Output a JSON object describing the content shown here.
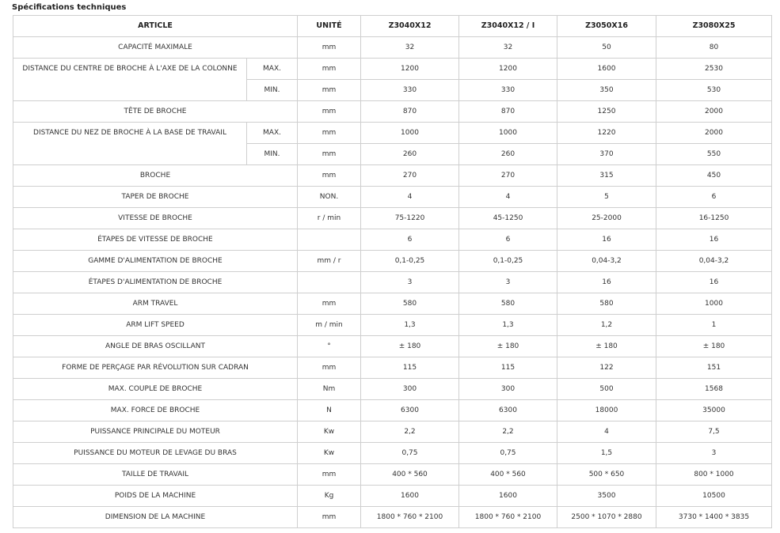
{
  "title": "Spécifications techniques",
  "header": {
    "article": "ARTICLE",
    "unit": "UNITÉ",
    "models": [
      "Z3040X12",
      "Z3040X12 / I",
      "Z3050X16",
      "Z3080X25"
    ]
  },
  "rows": [
    {
      "label": "CAPACITÉ MAXIMALE",
      "unit": "mm",
      "values": [
        "32",
        "32",
        "50",
        "80"
      ]
    },
    {
      "label": "DISTANCE DU CENTRE DE BROCHE À L'AXE DE LA COLONNE",
      "subrows": [
        {
          "sub": "MAX.",
          "unit": "mm",
          "values": [
            "1200",
            "1200",
            "1600",
            "2530"
          ]
        },
        {
          "sub": "MIN.",
          "unit": "mm",
          "values": [
            "330",
            "330",
            "350",
            "530"
          ]
        }
      ]
    },
    {
      "label": "TÊTE DE BROCHE",
      "unit": "mm",
      "values": [
        "870",
        "870",
        "1250",
        "2000"
      ]
    },
    {
      "label": "DISTANCE DU NEZ DE BROCHE À LA BASE DE TRAVAIL",
      "subrows": [
        {
          "sub": "MAX.",
          "unit": "mm",
          "values": [
            "1000",
            "1000",
            "1220",
            "2000"
          ]
        },
        {
          "sub": "MIN.",
          "unit": "mm",
          "values": [
            "260",
            "260",
            "370",
            "550"
          ]
        }
      ]
    },
    {
      "label": "BROCHE",
      "unit": "mm",
      "values": [
        "270",
        "270",
        "315",
        "450"
      ]
    },
    {
      "label": "TAPER DE BROCHE",
      "unit": "NON.",
      "values": [
        "4",
        "4",
        "5",
        "6"
      ]
    },
    {
      "label": "VITESSE DE BROCHE",
      "unit": "r / min",
      "values": [
        "75-1220",
        "45-1250",
        "25-2000",
        "16-1250"
      ]
    },
    {
      "label": "ÉTAPES DE VITESSE DE BROCHE",
      "unit": "",
      "values": [
        "6",
        "6",
        "16",
        "16"
      ]
    },
    {
      "label": "GAMME D'ALIMENTATION DE BROCHE",
      "unit": "mm / r",
      "values": [
        "0,1-0,25",
        "0,1-0,25",
        "0,04-3,2",
        "0,04-3,2"
      ]
    },
    {
      "label": "ÉTAPES D'ALIMENTATION DE BROCHE",
      "unit": "",
      "values": [
        "3",
        "3",
        "16",
        "16"
      ]
    },
    {
      "label": "ARM TRAVEL",
      "unit": "mm",
      "values": [
        "580",
        "580",
        "580",
        "1000"
      ]
    },
    {
      "label": "ARM LIFT SPEED",
      "unit": "m / min",
      "values": [
        "1,3",
        "1,3",
        "1,2",
        "1"
      ]
    },
    {
      "label": "ANGLE DE BRAS OSCILLANT",
      "unit": "°",
      "values": [
        "± 180",
        "± 180",
        "± 180",
        "± 180"
      ]
    },
    {
      "label": "FORME DE PERÇAGE PAR RÉVOLUTION SUR CADRAN",
      "unit": "mm",
      "values": [
        "115",
        "115",
        "122",
        "151"
      ]
    },
    {
      "label": "MAX. COUPLE DE BROCHE",
      "unit": "Nm",
      "values": [
        "300",
        "300",
        "500",
        "1568"
      ]
    },
    {
      "label": "MAX. FORCE DE BROCHE",
      "unit": "N",
      "values": [
        "6300",
        "6300",
        "18000",
        "35000"
      ]
    },
    {
      "label": "PUISSANCE PRINCIPALE DU MOTEUR",
      "unit": "Kw",
      "values": [
        "2,2",
        "2,2",
        "4",
        "7,5"
      ]
    },
    {
      "label": "PUISSANCE DU MOTEUR DE LEVAGE DU BRAS",
      "unit": "Kw",
      "values": [
        "0,75",
        "0,75",
        "1,5",
        "3"
      ]
    },
    {
      "label": "TAILLE DE TRAVAIL",
      "unit": "mm",
      "values": [
        "400 * 560",
        "400 * 560",
        "500 * 650",
        "800 * 1000"
      ]
    },
    {
      "label": "POIDS DE LA MACHINE",
      "unit": "Kg",
      "values": [
        "1600",
        "1600",
        "3500",
        "10500"
      ]
    },
    {
      "label": "DIMENSION DE LA MACHINE",
      "unit": "mm",
      "values": [
        "1800 * 760 * 2100",
        "1800 * 760 * 2100",
        "2500 * 1070 * 2880",
        "3730 * 1400 * 3835"
      ]
    }
  ]
}
